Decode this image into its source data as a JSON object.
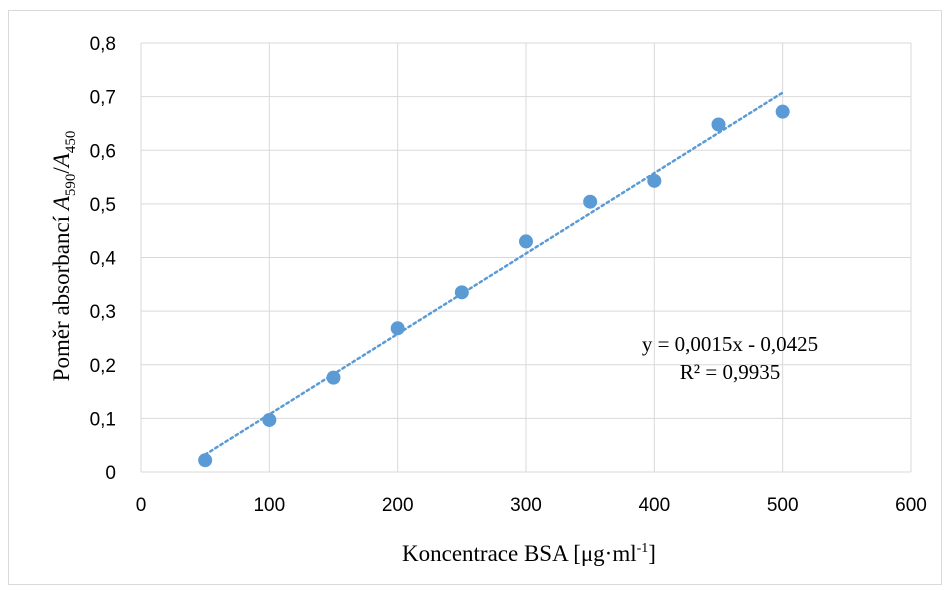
{
  "chart_data": {
    "type": "scatter",
    "title": "",
    "xlabel": "Koncentrace BSA [μg·ml-1]",
    "xlabel_parts": {
      "main": "Koncentrace BSA [μg·ml",
      "sup": "-1",
      "end": "]"
    },
    "ylabel": "Poměr absorbancí A590/A450",
    "ylabel_parts": {
      "main": "Poměr absorbancí ",
      "a1": "A",
      "s1": "590",
      "slash": "/",
      "a2": "A",
      "s2": "450"
    },
    "xlim": [
      0,
      600
    ],
    "ylim": [
      0,
      0.8
    ],
    "x_ticks": [
      0,
      100,
      200,
      300,
      400,
      500,
      600
    ],
    "x_tick_labels": [
      "0",
      "100",
      "200",
      "300",
      "400",
      "500",
      "600"
    ],
    "y_ticks": [
      0,
      0.1,
      0.2,
      0.3,
      0.4,
      0.5,
      0.6,
      0.7,
      0.8
    ],
    "y_tick_labels": [
      "0",
      "0,1",
      "0,2",
      "0,3",
      "0,4",
      "0,5",
      "0,6",
      "0,7",
      "0,8"
    ],
    "grid": true,
    "legend": "none",
    "series": [
      {
        "x": [
          50,
          100,
          150,
          200,
          250,
          300,
          350,
          400,
          450,
          500
        ],
        "y": [
          0.022,
          0.097,
          0.176,
          0.268,
          0.335,
          0.43,
          0.504,
          0.543,
          0.648,
          0.672
        ],
        "color": "#5b9bd5"
      }
    ],
    "trendline": {
      "type": "linear",
      "slope": 0.0015,
      "intercept": -0.0425,
      "x_range": [
        50,
        500
      ],
      "color": "#5b9bd5",
      "style": "dotted"
    },
    "annotations": [
      "y = 0,0015x - 0,0425",
      "R² = 0,9935"
    ]
  }
}
